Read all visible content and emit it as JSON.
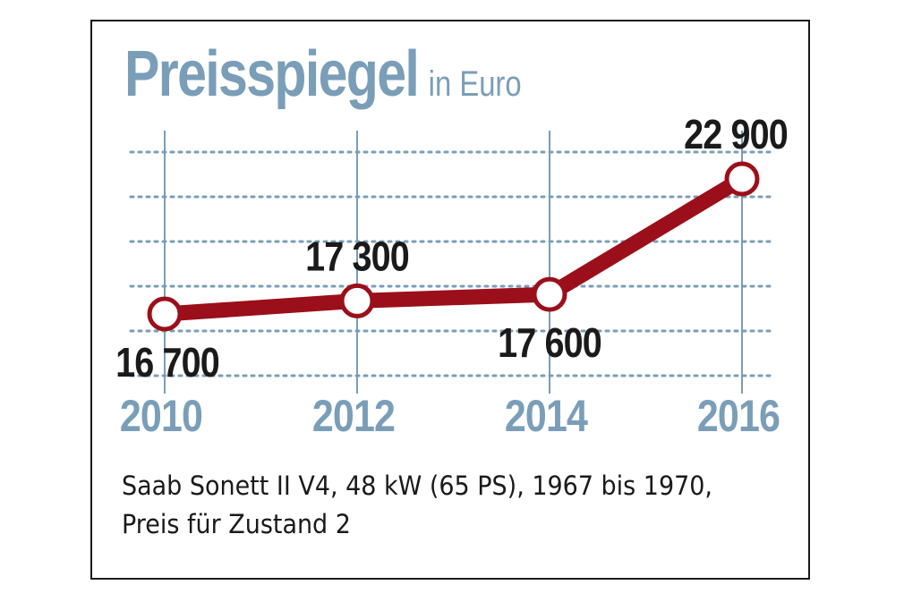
{
  "title": "Preisspiegel",
  "subtitle": "in Euro",
  "caption": {
    "line1": "Saab Sonett II V4, 48 kW (65 PS), 1967 bis 1970,",
    "line2": "Preis für Zustand 2"
  },
  "colors": {
    "accent": "#7a9eb8",
    "line": "#9b0f1a",
    "text": "#1a1a1a"
  },
  "chart_data": {
    "type": "line",
    "title": "Preisspiegel",
    "subtitle": "in Euro",
    "categories": [
      "2010",
      "2012",
      "2014",
      "2016"
    ],
    "values": [
      16700,
      17300,
      17600,
      22900
    ],
    "value_labels": [
      "16 700",
      "17 300",
      "17 600",
      "22 900"
    ],
    "label_positions": [
      "below",
      "above",
      "below",
      "above"
    ],
    "grid": true,
    "xlabel": "",
    "ylabel": ""
  }
}
